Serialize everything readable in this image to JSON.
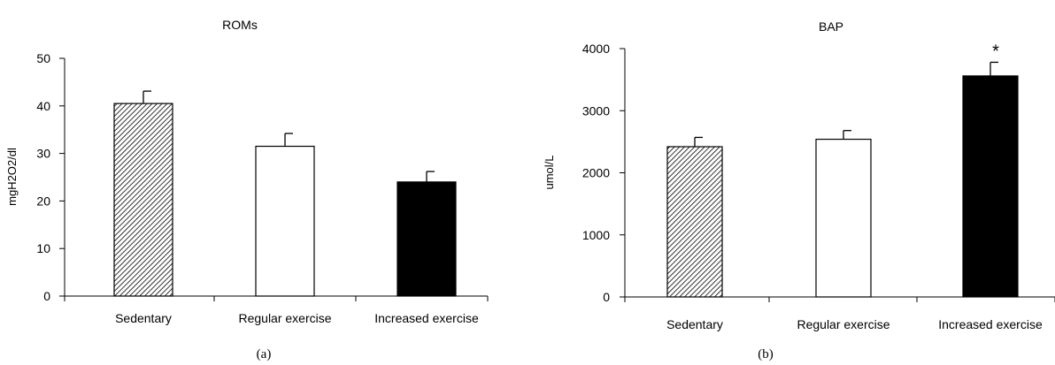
{
  "charts": [
    {
      "type": "bar",
      "title": "ROMs",
      "ylabel": "mgH2O2/dl",
      "xlabel": "",
      "caption": "(a)",
      "categories": [
        "Sedentary",
        "Regular exercise",
        "Increased exercise"
      ],
      "values": [
        40.5,
        31.5,
        24.0
      ],
      "errors": [
        2.6,
        2.7,
        2.2
      ],
      "fills": [
        "hatch",
        "white",
        "black"
      ],
      "significance": [
        "",
        "",
        ""
      ],
      "ylim": [
        0,
        50
      ],
      "yticks": [
        0,
        10,
        20,
        30,
        40,
        50
      ],
      "ytick_labels": [
        "0",
        "10",
        "20",
        "30",
        "40",
        "50"
      ]
    },
    {
      "type": "bar",
      "title": "BAP",
      "ylabel": "umol/L",
      "xlabel": "",
      "caption": "(b)",
      "categories": [
        "Sedentary",
        "Regular exercise",
        "Increased exercise"
      ],
      "values": [
        2420,
        2540,
        3560
      ],
      "errors": [
        150,
        140,
        220
      ],
      "fills": [
        "hatch",
        "white",
        "black"
      ],
      "significance": [
        "",
        "",
        "*"
      ],
      "ylim": [
        0,
        4000
      ],
      "yticks": [
        0,
        1000,
        2000,
        3000,
        4000
      ],
      "ytick_labels": [
        "0",
        "1000",
        "2000",
        "3000",
        "4000"
      ]
    }
  ],
  "colors": {
    "axis": "#000000",
    "bar_black": "#000000",
    "bar_white": "#ffffff",
    "hatch_line": "#000000"
  }
}
